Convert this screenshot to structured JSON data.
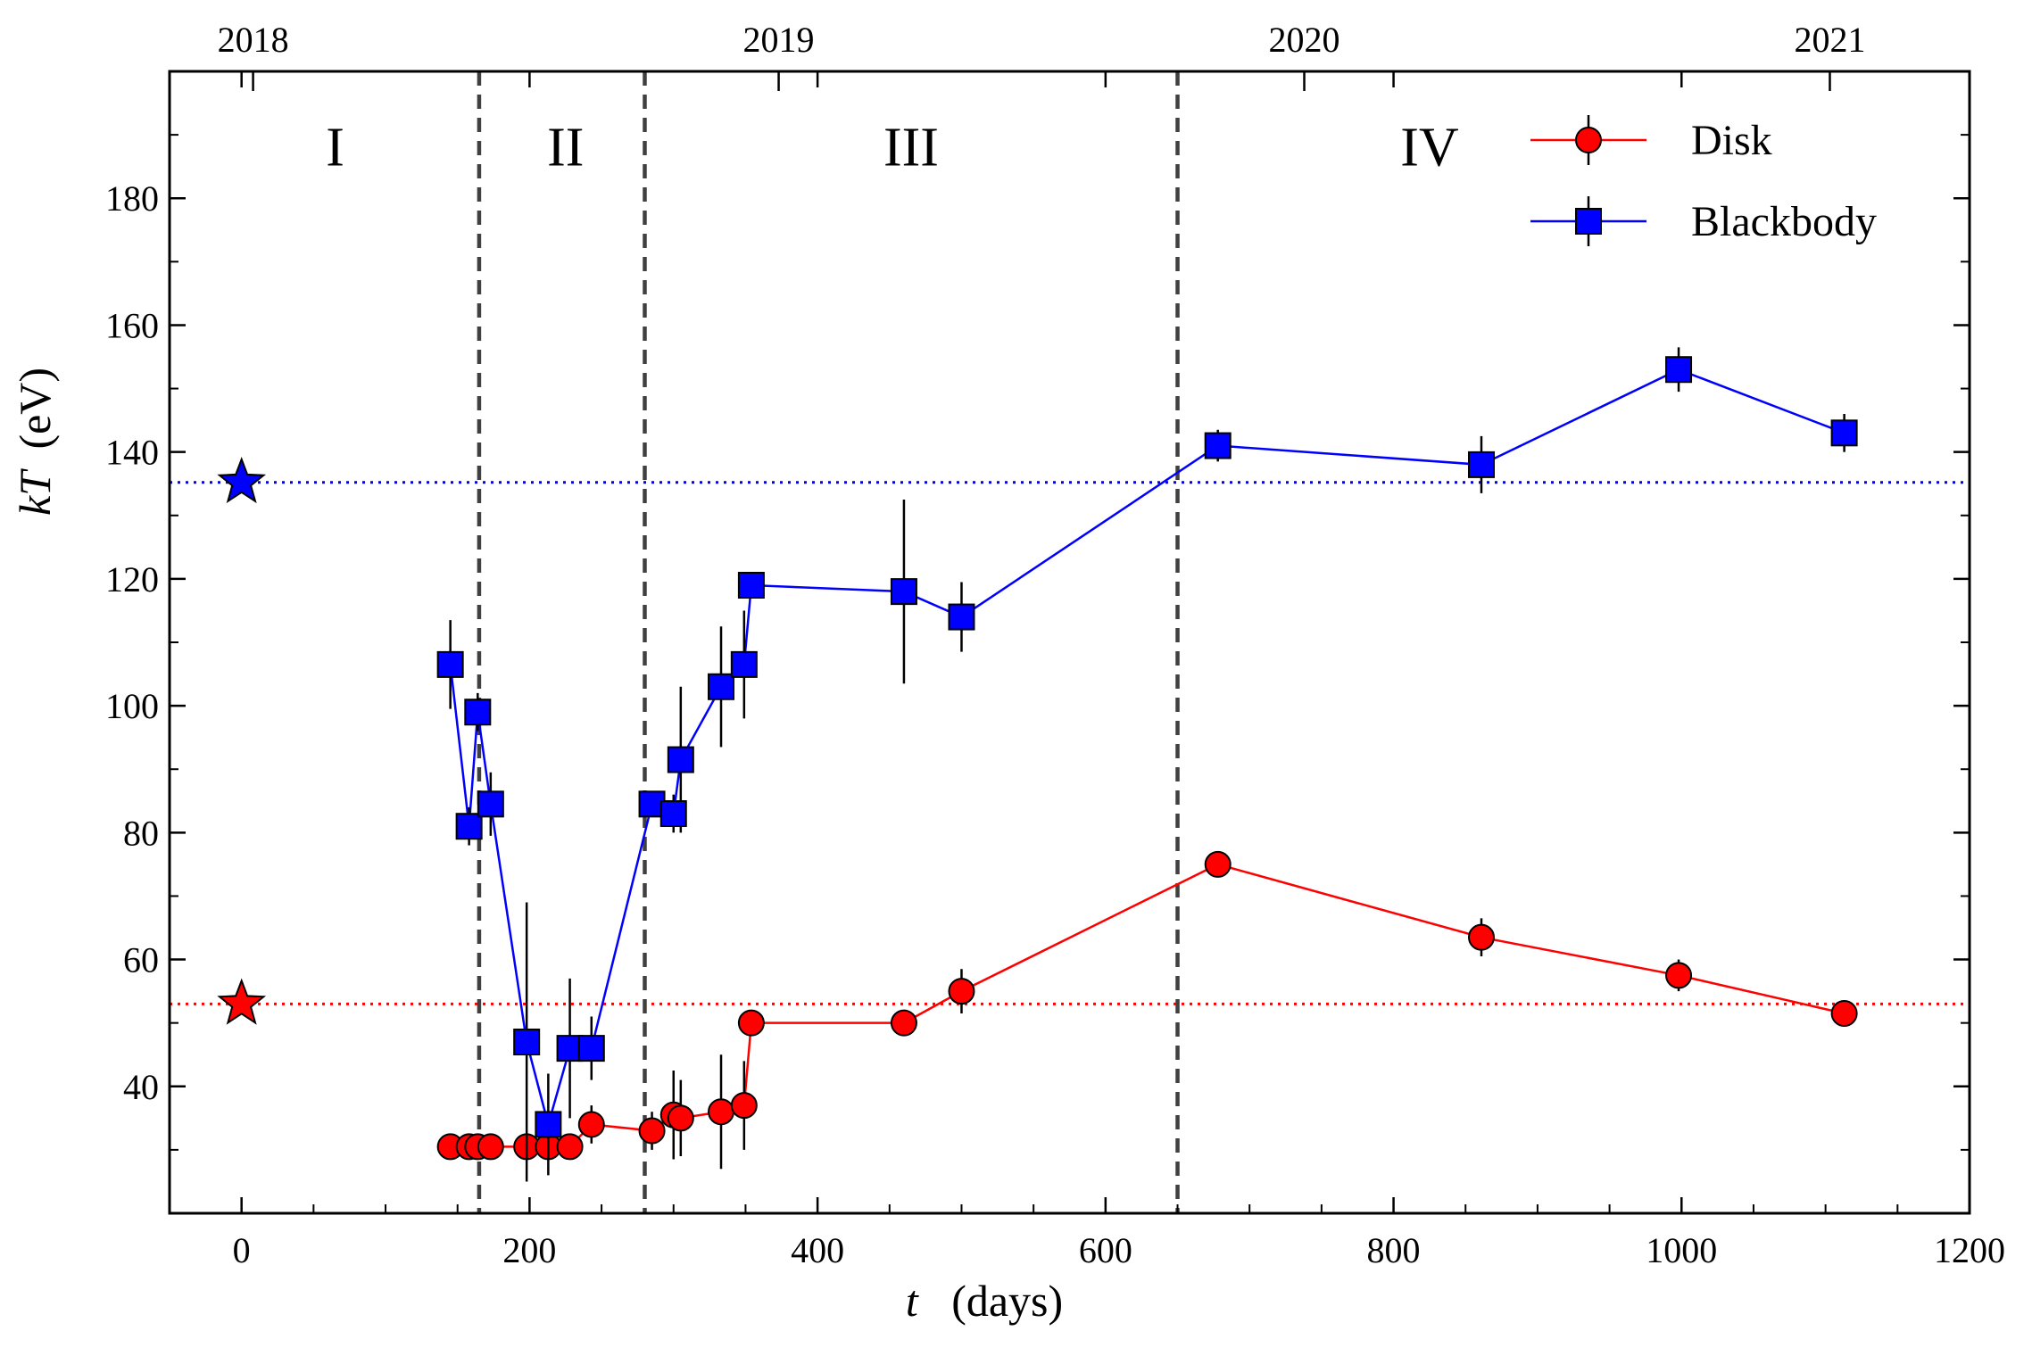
{
  "chart_data": {
    "type": "line",
    "xlabel_var": "t",
    "xlabel_unit": "(days)",
    "ylabel_var": "kT",
    "ylabel_unit": "(eV)",
    "xlim": [
      -50,
      1200
    ],
    "ylim": [
      20,
      200
    ],
    "x_ticks": [
      0,
      200,
      400,
      600,
      800,
      1000,
      1200
    ],
    "y_ticks": [
      40,
      60,
      80,
      100,
      120,
      140,
      160,
      180
    ],
    "x_minor_step": 50,
    "y_minor_step": 10,
    "top_axis": {
      "ticks": [
        {
          "label": "2018",
          "x": 8
        },
        {
          "label": "2019",
          "x": 373
        },
        {
          "label": "2020",
          "x": 738
        },
        {
          "label": "2021",
          "x": 1103
        }
      ]
    },
    "phase_boundaries": [
      165,
      280,
      650
    ],
    "phases": [
      {
        "label": "I",
        "x": 65
      },
      {
        "label": "II",
        "x": 225
      },
      {
        "label": "III",
        "x": 465
      },
      {
        "label": "IV",
        "x": 825
      }
    ],
    "phase_label_y": 188,
    "reference_lines": [
      {
        "name": "Blackbody reference",
        "y": 135.2,
        "color": "#0000ff",
        "star_x": 0
      },
      {
        "name": "Disk reference",
        "y": 53,
        "color": "#ff0000",
        "star_x": 0
      }
    ],
    "series": [
      {
        "name": "Disk",
        "color": "#ff0000",
        "marker": "circle",
        "points": [
          {
            "x": 145,
            "y": 30.5,
            "err": 0
          },
          {
            "x": 158,
            "y": 30.5,
            "err": 0
          },
          {
            "x": 164,
            "y": 30.5,
            "err": 0
          },
          {
            "x": 173,
            "y": 30.5,
            "err": 0
          },
          {
            "x": 198,
            "y": 30.5,
            "err": 0
          },
          {
            "x": 213,
            "y": 30.5,
            "err": 0
          },
          {
            "x": 228,
            "y": 30.5,
            "err": 0
          },
          {
            "x": 243,
            "y": 34,
            "err": 3
          },
          {
            "x": 285,
            "y": 33,
            "err": 3
          },
          {
            "x": 300,
            "y": 35.5,
            "err": 7
          },
          {
            "x": 305,
            "y": 35,
            "err": 6
          },
          {
            "x": 333,
            "y": 36,
            "err": 9
          },
          {
            "x": 349,
            "y": 37,
            "err": 7
          },
          {
            "x": 354,
            "y": 50,
            "err": 0
          },
          {
            "x": 460,
            "y": 50,
            "err": 0
          },
          {
            "x": 500,
            "y": 55,
            "err": 3.5
          },
          {
            "x": 678,
            "y": 75,
            "err": 0
          },
          {
            "x": 861,
            "y": 63.5,
            "err": 3
          },
          {
            "x": 998,
            "y": 57.5,
            "err": 2.5
          },
          {
            "x": 1113,
            "y": 51.5,
            "err": 0
          }
        ]
      },
      {
        "name": "Blackbody",
        "color": "#0000ff",
        "marker": "square",
        "points": [
          {
            "x": 145,
            "y": 106.5,
            "err": 7
          },
          {
            "x": 158,
            "y": 81,
            "err": 3
          },
          {
            "x": 164,
            "y": 99,
            "err": 3
          },
          {
            "x": 173,
            "y": 84.5,
            "err": 5
          },
          {
            "x": 198,
            "y": 47,
            "err": 22
          },
          {
            "x": 213,
            "y": 34,
            "err": 8
          },
          {
            "x": 228,
            "y": 46,
            "err": 11
          },
          {
            "x": 243,
            "y": 46,
            "err": 5
          },
          {
            "x": 285,
            "y": 84.5,
            "err": 0
          },
          {
            "x": 300,
            "y": 83,
            "err": 3
          },
          {
            "x": 305,
            "y": 91.5,
            "err": 11.5
          },
          {
            "x": 333,
            "y": 103,
            "err": 9.5
          },
          {
            "x": 349,
            "y": 106.5,
            "err": 8.5
          },
          {
            "x": 354,
            "y": 119,
            "err": 0
          },
          {
            "x": 460,
            "y": 118,
            "err": 14.5
          },
          {
            "x": 500,
            "y": 114,
            "err": 5.5
          },
          {
            "x": 678,
            "y": 141,
            "err": 2.5
          },
          {
            "x": 861,
            "y": 138,
            "err": 4.5
          },
          {
            "x": 998,
            "y": 153,
            "err": 3.5
          },
          {
            "x": 1113,
            "y": 143,
            "err": 3
          }
        ]
      }
    ]
  }
}
